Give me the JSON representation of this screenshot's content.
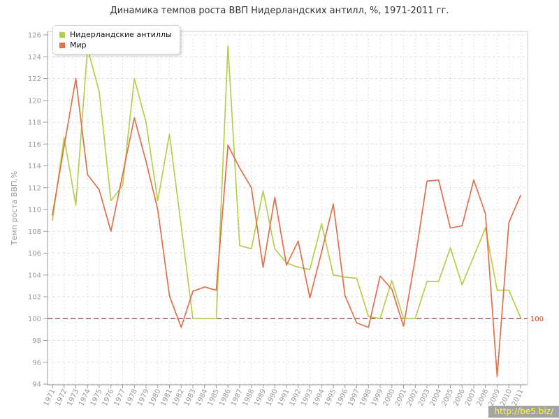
{
  "title": "Динамика темпов роста ВВП Нидерландских антилл, %, 1971-2011 гг.",
  "watermark": "http://be5.biz/",
  "chart_data": {
    "type": "line",
    "title": "Динамика темпов роста ВВП Нидерландских антилл, %, 1971-2011 гг.",
    "xlabel": "",
    "ylabel": "Темп роста ВВП,%",
    "ylim": [
      94,
      126
    ],
    "ytick_step": 2,
    "grid": true,
    "legend_position": "top-left",
    "x": [
      1971,
      1972,
      1973,
      1974,
      1975,
      1976,
      1977,
      1978,
      1979,
      1980,
      1981,
      1982,
      1983,
      1984,
      1985,
      1986,
      1987,
      1988,
      1989,
      1990,
      1991,
      1992,
      1993,
      1994,
      1995,
      1996,
      1997,
      1998,
      1999,
      2000,
      2001,
      2002,
      2003,
      2004,
      2005,
      2006,
      2007,
      2008,
      2009,
      2010,
      2011
    ],
    "series": [
      {
        "name": "Нидерландские антиллы",
        "color": "#b3d04c",
        "values": [
          109,
          116.6,
          110.4,
          124.8,
          120.8,
          110.8,
          112.2,
          122,
          118,
          110.8,
          116.9,
          108.5,
          100,
          100,
          100,
          125,
          106.7,
          106.4,
          111.7,
          106.4,
          105.1,
          104.7,
          104.5,
          108.7,
          104,
          103.8,
          103.7,
          100.2,
          100,
          103.5,
          100,
          100,
          103.4,
          103.4,
          106.5,
          103.1,
          105.7,
          108.3,
          102.6,
          102.6,
          100.1
        ]
      },
      {
        "name": "Мир",
        "color": "#e0714a",
        "values": [
          109.5,
          115.8,
          122,
          113.2,
          111.8,
          108,
          113.2,
          118.4,
          114.4,
          110,
          102.1,
          99.2,
          102.5,
          102.9,
          102.6,
          115.9,
          113.8,
          112,
          104.7,
          111.1,
          104.9,
          107.1,
          101.9,
          106.1,
          110.5,
          102.1,
          99.6,
          99.2,
          103.9,
          102.7,
          99.3,
          105.5,
          112.6,
          112.7,
          108.3,
          108.5,
          112.7,
          109.6,
          94.7,
          108.8,
          111.3
        ]
      }
    ],
    "baseline": {
      "value": 100,
      "label": "100",
      "line_color": "#a03a50",
      "label_color": "#cc4125"
    }
  }
}
